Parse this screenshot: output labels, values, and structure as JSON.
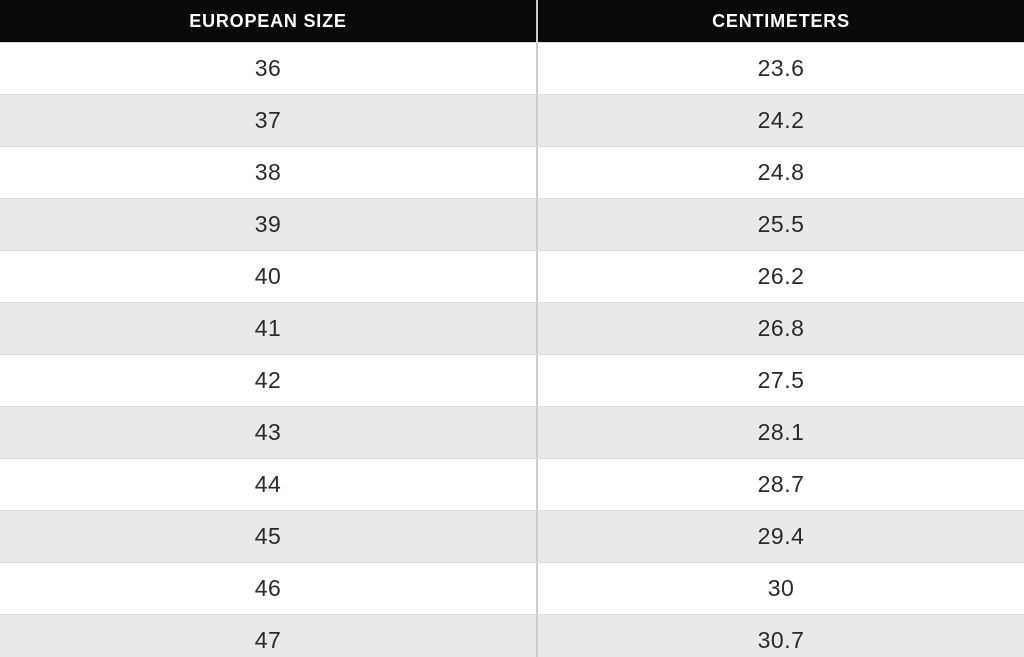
{
  "colors": {
    "header_bg": "#0a0a0a",
    "header_text": "#ffffff",
    "row_bg": "#ffffff",
    "row_alt_bg": "#e9e9e9",
    "border": "#d9d9d9",
    "divider": "#cbcbcb",
    "cell_text": "#2a2a2a"
  },
  "table": {
    "columns": [
      "EUROPEAN SIZE",
      "CENTIMETERS"
    ],
    "rows": [
      [
        "36",
        "23.6"
      ],
      [
        "37",
        "24.2"
      ],
      [
        "38",
        "24.8"
      ],
      [
        "39",
        "25.5"
      ],
      [
        "40",
        "26.2"
      ],
      [
        "41",
        "26.8"
      ],
      [
        "42",
        "27.5"
      ],
      [
        "43",
        "28.1"
      ],
      [
        "44",
        "28.7"
      ],
      [
        "45",
        "29.4"
      ],
      [
        "46",
        "30"
      ],
      [
        "47",
        "30.7"
      ]
    ]
  },
  "chart_data": {
    "type": "table",
    "columns": [
      "EUROPEAN SIZE",
      "CENTIMETERS"
    ],
    "european_sizes": [
      36,
      37,
      38,
      39,
      40,
      41,
      42,
      43,
      44,
      45,
      46,
      47
    ],
    "centimeters": [
      23.6,
      24.2,
      24.8,
      25.5,
      26.2,
      26.8,
      27.5,
      28.1,
      28.7,
      29.4,
      30,
      30.7
    ],
    "layout": {
      "zebra_striping": true,
      "first_data_row_background": "white",
      "header_background": "black",
      "last_row_clipped_by_viewport": true
    }
  }
}
